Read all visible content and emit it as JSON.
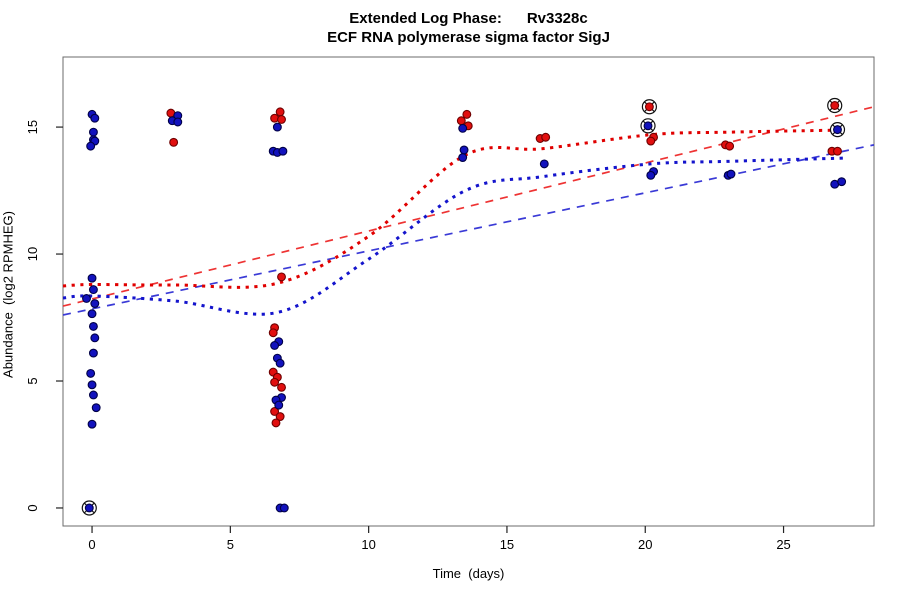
{
  "title": {
    "line1": "Extended Log Phase:      Rv3328c",
    "line2": "ECF RNA polymerase sigma factor SigJ"
  },
  "chart_data": {
    "type": "scatter",
    "title": "Extended Log Phase: Rv3328c — ECF RNA polymerase sigma factor SigJ",
    "xlabel": "Time  (days)",
    "ylabel": "Abundance  (log2 RPMHEG)",
    "xlim": [
      -1.05,
      28.27
    ],
    "ylim": [
      -0.71,
      17.76
    ],
    "x_ticks": [
      0,
      5,
      10,
      15,
      20,
      25
    ],
    "y_ticks": [
      0,
      5,
      10,
      15
    ],
    "grid": false,
    "legend": "none",
    "series": [
      {
        "name": "red-replicate",
        "marker": "filled-circle",
        "fill": "#e10f0f",
        "edge": "#6e0000",
        "points": [
          [
            2.85,
            15.55
          ],
          [
            2.95,
            14.4
          ],
          [
            6.8,
            15.6
          ],
          [
            6.6,
            15.35
          ],
          [
            6.85,
            15.3
          ],
          [
            6.85,
            9.1
          ],
          [
            6.6,
            7.1
          ],
          [
            6.55,
            6.9
          ],
          [
            6.55,
            5.35
          ],
          [
            6.7,
            5.15
          ],
          [
            6.6,
            4.95
          ],
          [
            6.85,
            4.75
          ],
          [
            6.6,
            3.8
          ],
          [
            6.8,
            3.6
          ],
          [
            6.65,
            3.35
          ],
          [
            13.55,
            15.5
          ],
          [
            13.35,
            15.25
          ],
          [
            13.6,
            15.05
          ],
          [
            16.2,
            14.55
          ],
          [
            16.4,
            14.6
          ],
          [
            20.3,
            14.6
          ],
          [
            20.2,
            14.45
          ],
          [
            22.9,
            14.3
          ],
          [
            23.05,
            14.25
          ],
          [
            26.75,
            14.05
          ],
          [
            26.95,
            14.05
          ]
        ],
        "circled_points": [
          [
            20.15,
            15.8
          ],
          [
            26.85,
            15.85
          ]
        ]
      },
      {
        "name": "blue-replicate",
        "marker": "filled-circle",
        "fill": "#1212bd",
        "edge": "#000046",
        "points": [
          [
            0.0,
            15.5
          ],
          [
            0.1,
            15.35
          ],
          [
            0.05,
            14.8
          ],
          [
            0.05,
            14.5
          ],
          [
            0.1,
            14.45
          ],
          [
            -0.05,
            14.25
          ],
          [
            0.0,
            9.05
          ],
          [
            0.05,
            8.6
          ],
          [
            -0.2,
            8.25
          ],
          [
            0.1,
            8.05
          ],
          [
            0.0,
            7.65
          ],
          [
            0.05,
            7.15
          ],
          [
            0.1,
            6.7
          ],
          [
            0.05,
            6.1
          ],
          [
            -0.05,
            5.3
          ],
          [
            0.0,
            4.85
          ],
          [
            0.05,
            4.45
          ],
          [
            0.15,
            3.95
          ],
          [
            0.0,
            3.3
          ],
          [
            3.1,
            15.45
          ],
          [
            2.9,
            15.25
          ],
          [
            3.1,
            15.2
          ],
          [
            6.7,
            15.0
          ],
          [
            6.55,
            14.05
          ],
          [
            6.7,
            14.0
          ],
          [
            6.9,
            14.05
          ],
          [
            6.75,
            6.55
          ],
          [
            6.6,
            6.4
          ],
          [
            6.7,
            5.9
          ],
          [
            6.8,
            5.7
          ],
          [
            6.85,
            4.35
          ],
          [
            6.65,
            4.25
          ],
          [
            6.75,
            4.05
          ],
          [
            6.8,
            0.0
          ],
          [
            6.95,
            0.0
          ],
          [
            13.4,
            14.95
          ],
          [
            13.45,
            14.1
          ],
          [
            13.4,
            13.8
          ],
          [
            16.35,
            13.55
          ],
          [
            20.3,
            13.25
          ],
          [
            20.2,
            13.1
          ],
          [
            23.0,
            13.1
          ],
          [
            23.1,
            13.15
          ],
          [
            26.85,
            12.75
          ],
          [
            27.1,
            12.85
          ]
        ],
        "circled_points": [
          [
            -0.1,
            0.0
          ],
          [
            20.1,
            15.05
          ],
          [
            26.95,
            14.9
          ]
        ]
      }
    ],
    "lines": [
      {
        "name": "red-linear-trend",
        "style": "dashed",
        "color": "#ee3333",
        "width": 1.7,
        "points": [
          [
            -1.05,
            7.95
          ],
          [
            28.27,
            15.8
          ]
        ]
      },
      {
        "name": "blue-linear-trend",
        "style": "dashed",
        "color": "#3a3ad6",
        "width": 1.7,
        "points": [
          [
            -1.05,
            7.6
          ],
          [
            28.27,
            14.3
          ]
        ]
      },
      {
        "name": "red-smooth-trend",
        "style": "dotted",
        "color": "#e00000",
        "width": 3,
        "points": [
          [
            -1.05,
            8.74
          ],
          [
            0.0,
            8.8
          ],
          [
            3.0,
            8.78
          ],
          [
            6.7,
            8.85
          ],
          [
            10.0,
            10.7
          ],
          [
            13.5,
            13.9
          ],
          [
            16.3,
            14.15
          ],
          [
            20.2,
            14.7
          ],
          [
            23.0,
            14.8
          ],
          [
            27.0,
            14.88
          ]
        ]
      },
      {
        "name": "blue-smooth-trend",
        "style": "dotted",
        "color": "#1414cc",
        "width": 3,
        "points": [
          [
            -1.05,
            8.27
          ],
          [
            0.0,
            8.35
          ],
          [
            3.0,
            8.15
          ],
          [
            6.7,
            7.7
          ],
          [
            10.0,
            9.8
          ],
          [
            13.5,
            12.5
          ],
          [
            16.3,
            13.05
          ],
          [
            20.2,
            13.55
          ],
          [
            23.0,
            13.65
          ],
          [
            27.2,
            13.78
          ]
        ]
      }
    ],
    "outlier_marker": "circle-with-x",
    "colors": {
      "red_series": "#e10f0f",
      "blue_series": "#1212bd",
      "plot_border": "#6b6b6b",
      "tick": "#222222",
      "background": "#ffffff"
    }
  }
}
